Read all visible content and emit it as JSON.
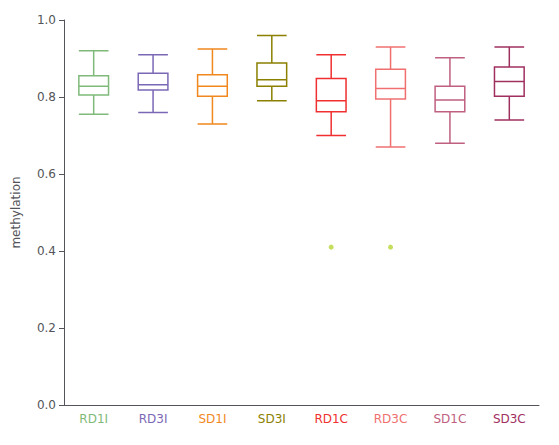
{
  "chart_data": {
    "type": "boxplot",
    "categories": [
      "RD1I",
      "RD3I",
      "SD1I",
      "SD3I",
      "RD1C",
      "RD3C",
      "SD1C",
      "SD3C"
    ],
    "colors": [
      "#7fba7a",
      "#7b68b5",
      "#f0881e",
      "#8b8000",
      "#f03030",
      "#f07070",
      "#c06080",
      "#a03060"
    ],
    "values": [
      {
        "whislo": 0.755,
        "q1": 0.805,
        "med": 0.828,
        "q3": 0.855,
        "whishi": 0.92,
        "fliers": []
      },
      {
        "whislo": 0.76,
        "q1": 0.818,
        "med": 0.832,
        "q3": 0.862,
        "whishi": 0.91,
        "fliers": []
      },
      {
        "whislo": 0.73,
        "q1": 0.802,
        "med": 0.828,
        "q3": 0.858,
        "whishi": 0.925,
        "fliers": []
      },
      {
        "whislo": 0.79,
        "q1": 0.828,
        "med": 0.845,
        "q3": 0.888,
        "whishi": 0.96,
        "fliers": []
      },
      {
        "whislo": 0.7,
        "q1": 0.762,
        "med": 0.79,
        "q3": 0.848,
        "whishi": 0.91,
        "fliers": [
          0.41
        ]
      },
      {
        "whislo": 0.67,
        "q1": 0.795,
        "med": 0.822,
        "q3": 0.872,
        "whishi": 0.93,
        "fliers": [
          0.41
        ]
      },
      {
        "whislo": 0.68,
        "q1": 0.762,
        "med": 0.792,
        "q3": 0.828,
        "whishi": 0.902,
        "fliers": []
      },
      {
        "whislo": 0.74,
        "q1": 0.802,
        "med": 0.84,
        "q3": 0.878,
        "whishi": 0.93,
        "fliers": []
      }
    ],
    "ylabel": "methylation",
    "ylim": [
      0.0,
      1.0
    ],
    "yticks": [
      {
        "value": 0.0,
        "label": "0.0"
      },
      0.2,
      0.4,
      0.6,
      0.8,
      {
        "value": 1.0,
        "label": "1.0"
      }
    ],
    "grid": false
  }
}
